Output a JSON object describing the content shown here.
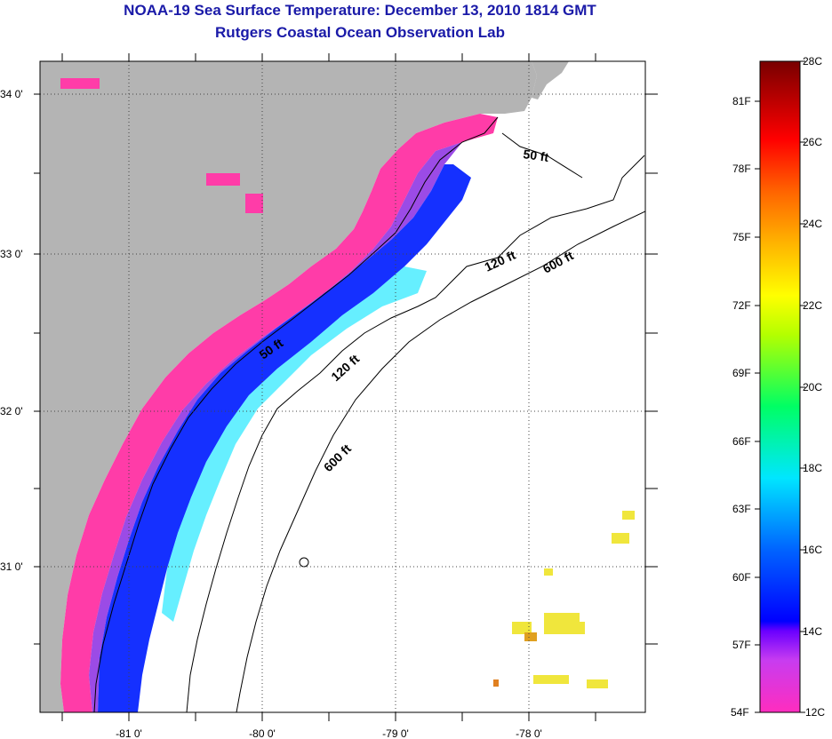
{
  "header": {
    "title": "NOAA-19 Sea Surface Temperature:  December 13, 2010 1814 GMT",
    "subtitle": "Rutgers Coastal Ocean Observation Lab"
  },
  "map": {
    "lat_labels": [
      "34 0'",
      "33 0'",
      "32 0'",
      "31 0'"
    ],
    "lon_labels": [
      "-81 0'",
      "-80 0'",
      "-79 0'",
      "-78 0'"
    ],
    "contours": [
      "50 ft",
      "120 ft",
      "600 ft",
      "50 ft",
      "120 ft",
      "600 ft"
    ],
    "colors": {
      "land": "#b4b4b4",
      "coldest": "#ff3ca8",
      "cold": "#8a2be2",
      "blue": "#1530ff",
      "cyan": "#00e5ff",
      "warm": "#f0e63c"
    }
  },
  "colorbar": {
    "celsius_labels": [
      "28C",
      "26C",
      "24C",
      "22C",
      "20C",
      "18C",
      "16C",
      "14C",
      "12C"
    ],
    "fahrenheit_labels": [
      "81F",
      "78F",
      "75F",
      "72F",
      "69F",
      "66F",
      "63F",
      "60F",
      "57F",
      "54F"
    ],
    "range_c": [
      12,
      28
    ]
  }
}
